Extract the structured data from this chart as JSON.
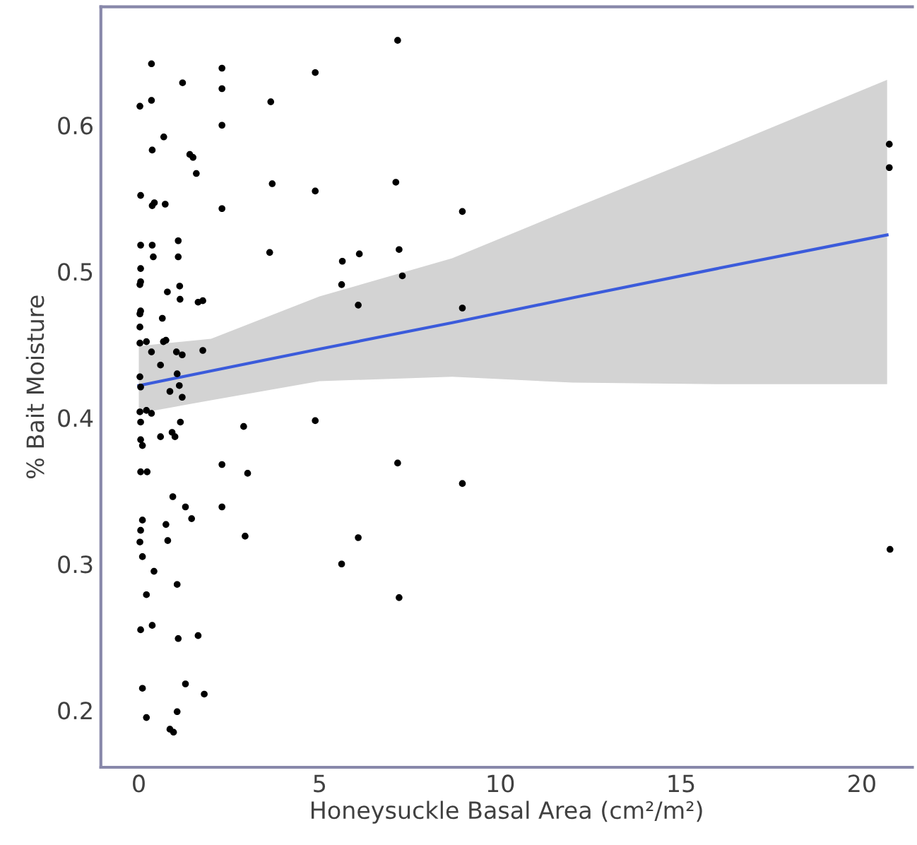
{
  "chart_data": {
    "type": "scatter",
    "xlabel": "Honeysuckle Basal Area (cm²/m²)",
    "ylabel": "% Bait Moisture",
    "xlim": [
      -1.05,
      21.4
    ],
    "ylim": [
      0.161,
      0.681
    ],
    "xticks": [
      0,
      5,
      10,
      15,
      20
    ],
    "yticks": [
      0.2,
      0.3,
      0.4,
      0.5,
      0.6
    ],
    "grid": false,
    "series": [
      {
        "color": "#000000",
        "marker": "circle",
        "x": [
          0.35,
          0.03,
          0.35,
          1.21,
          2.3,
          2.3,
          2.3,
          4.88,
          3.65,
          7.16,
          0.69,
          0.37,
          1.41,
          1.5,
          1.59,
          0.05,
          0.37,
          0.43,
          0.73,
          2.3,
          3.69,
          4.88,
          7.11,
          8.95,
          0.05,
          0.37,
          1.09,
          1.09,
          0.4,
          0.05,
          0.05,
          0.03,
          0.79,
          1.13,
          1.14,
          1.64,
          1.77,
          0.05,
          0.03,
          3.62,
          5.63,
          6.1,
          5.61,
          7.2,
          7.29,
          6.07,
          8.95,
          0.65,
          0.03,
          0.03,
          0.21,
          0.35,
          0.68,
          0.75,
          1.04,
          1.2,
          1.77,
          0.6,
          0.03,
          0.05,
          1.06,
          1.12,
          0.86,
          1.2,
          0.03,
          0.21,
          0.35,
          0.05,
          1.15,
          2.9,
          4.88,
          0.05,
          0.1,
          0.6,
          0.92,
          1.0,
          0.05,
          0.23,
          2.3,
          3.01,
          7.16,
          8.95,
          0.94,
          1.29,
          1.46,
          2.3,
          0.1,
          0.05,
          0.03,
          0.75,
          0.8,
          2.94,
          6.07,
          5.61,
          0.1,
          0.42,
          0.21,
          1.06,
          7.2,
          0.05,
          0.37,
          1.09,
          1.64,
          0.1,
          1.29,
          1.81,
          0.21,
          1.06,
          0.86,
          0.96,
          20.76,
          20.76,
          20.78
        ],
        "values": [
          0.642,
          0.613,
          0.617,
          0.629,
          0.639,
          0.625,
          0.6,
          0.636,
          0.616,
          0.658,
          0.592,
          0.583,
          0.58,
          0.578,
          0.567,
          0.552,
          0.545,
          0.547,
          0.546,
          0.543,
          0.56,
          0.555,
          0.561,
          0.541,
          0.518,
          0.518,
          0.521,
          0.51,
          0.51,
          0.502,
          0.493,
          0.491,
          0.486,
          0.49,
          0.481,
          0.479,
          0.48,
          0.473,
          0.471,
          0.513,
          0.507,
          0.512,
          0.491,
          0.515,
          0.497,
          0.477,
          0.475,
          0.468,
          0.462,
          0.451,
          0.452,
          0.445,
          0.452,
          0.453,
          0.445,
          0.443,
          0.446,
          0.436,
          0.428,
          0.421,
          0.43,
          0.422,
          0.418,
          0.414,
          0.404,
          0.405,
          0.403,
          0.397,
          0.397,
          0.394,
          0.398,
          0.385,
          0.381,
          0.387,
          0.39,
          0.387,
          0.363,
          0.363,
          0.368,
          0.362,
          0.369,
          0.355,
          0.346,
          0.339,
          0.331,
          0.339,
          0.33,
          0.323,
          0.315,
          0.327,
          0.316,
          0.319,
          0.318,
          0.3,
          0.305,
          0.295,
          0.279,
          0.286,
          0.277,
          0.255,
          0.258,
          0.249,
          0.251,
          0.215,
          0.218,
          0.211,
          0.195,
          0.199,
          0.187,
          0.185,
          0.587,
          0.571,
          0.31
        ]
      },
      {
        "type": "line",
        "color": "#3b5bdb",
        "x": [
          0,
          2,
          5,
          8.67,
          12,
          16,
          20.7
        ],
        "values": [
          0.422,
          0.432,
          0.447,
          0.465,
          0.482,
          0.502,
          0.525
        ],
        "lower": [
          0.403,
          0.412,
          0.425,
          0.428,
          0.424,
          0.423,
          0.423
        ],
        "upper": [
          0.449,
          0.454,
          0.483,
          0.509,
          0.543,
          0.583,
          0.631
        ]
      }
    ]
  }
}
